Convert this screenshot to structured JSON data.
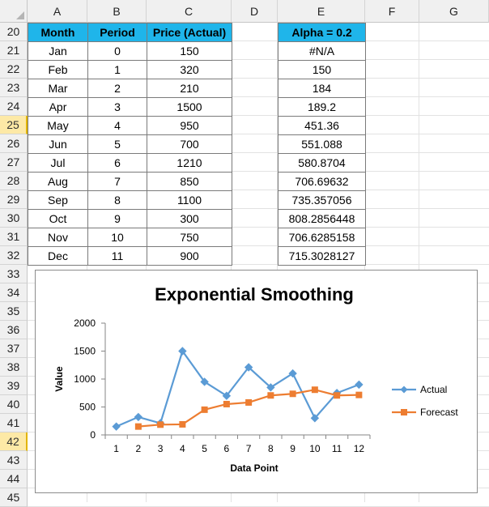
{
  "columns": [
    "A",
    "B",
    "C",
    "D",
    "E",
    "F",
    "G"
  ],
  "rows": [
    "20",
    "21",
    "22",
    "23",
    "24",
    "25",
    "26",
    "27",
    "28",
    "29",
    "30",
    "31",
    "32",
    "33",
    "34",
    "35",
    "36",
    "37",
    "38",
    "39",
    "40",
    "41",
    "42",
    "43",
    "44",
    "45"
  ],
  "selected_row": "42",
  "active_row": "25",
  "table": {
    "headers": [
      "Month",
      "Period",
      "Price (Actual)"
    ],
    "rows": [
      [
        "Jan",
        "0",
        "150"
      ],
      [
        "Feb",
        "1",
        "320"
      ],
      [
        "Mar",
        "2",
        "210"
      ],
      [
        "Apr",
        "3",
        "1500"
      ],
      [
        "May",
        "4",
        "950"
      ],
      [
        "Jun",
        "5",
        "700"
      ],
      [
        "Jul",
        "6",
        "1210"
      ],
      [
        "Aug",
        "7",
        "850"
      ],
      [
        "Sep",
        "8",
        "1100"
      ],
      [
        "Oct",
        "9",
        "300"
      ],
      [
        "Nov",
        "10",
        "750"
      ],
      [
        "Dec",
        "11",
        "900"
      ]
    ]
  },
  "forecast": {
    "header": "Alpha = 0.2",
    "values": [
      "#N/A",
      "150",
      "184",
      "189.2",
      "451.36",
      "551.088",
      "580.8704",
      "706.69632",
      "735.357056",
      "808.2856448",
      "706.6285158",
      "715.3028127"
    ]
  },
  "colors": {
    "header_fill": "#1fb5ea",
    "actual": "#5b9bd5",
    "forecast": "#ed7d31"
  },
  "chart_data": {
    "type": "line",
    "title": "Exponential Smoothing",
    "xlabel": "Data Point",
    "ylabel": "Value",
    "x": [
      1,
      2,
      3,
      4,
      5,
      6,
      7,
      8,
      9,
      10,
      11,
      12
    ],
    "ylim": [
      0,
      2000
    ],
    "yticks": [
      "0",
      "500",
      "1000",
      "1500",
      "2000"
    ],
    "legend_position": "right",
    "series": [
      {
        "name": "Actual",
        "values": [
          150,
          320,
          210,
          1500,
          950,
          700,
          1210,
          850,
          1100,
          300,
          750,
          900
        ],
        "marker": "diamond",
        "color": "#5b9bd5"
      },
      {
        "name": "Forecast",
        "values": [
          null,
          150,
          184,
          189.2,
          451.36,
          551.088,
          580.8704,
          706.69632,
          735.357056,
          808.2856448,
          706.6285158,
          715.3028127
        ],
        "marker": "square",
        "color": "#ed7d31"
      }
    ]
  }
}
